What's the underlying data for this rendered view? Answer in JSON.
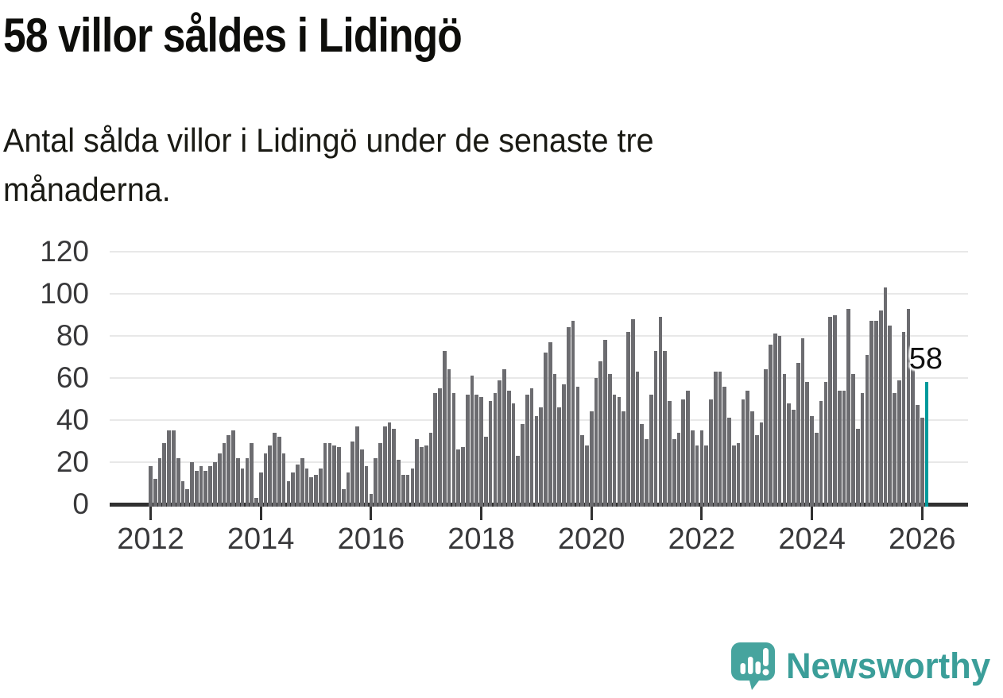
{
  "title": "58 villor såldes i Lidingö",
  "subtitle_lines": [
    "Antal sålda villor i Lidingö under de senaste tre",
    "månaderna."
  ],
  "annotation": {
    "label": "58"
  },
  "logo": {
    "text": "Newsworthy",
    "icon": "newsworthy-speech-bubble-bar-chart-icon"
  },
  "colors": {
    "bar": "#6c6c70",
    "highlight": "#00999b",
    "grid": "#e8e8e8",
    "axis": "#303030",
    "axis_text": "#38383a",
    "title_text": "#0e0e0b",
    "logo_teal": "#46a49e",
    "logo_text_teal": "#3b9e99"
  },
  "chart_data": {
    "type": "bar",
    "title": "58 villor såldes i Lidingö",
    "xlabel": "",
    "ylabel": "",
    "x_interval": "monthly",
    "x_range": [
      "2012-01",
      "2026-02"
    ],
    "x_tick_labels": [
      "2012",
      "2014",
      "2016",
      "2018",
      "2020",
      "2022",
      "2024",
      "2026"
    ],
    "y_ticks": [
      0,
      20,
      40,
      60,
      80,
      100,
      120
    ],
    "ylim": [
      0,
      120
    ],
    "grid": true,
    "legend": "none",
    "highlight_last_bar": true,
    "last_bar_label": "58",
    "values": [
      18,
      12,
      22,
      29,
      35,
      35,
      22,
      11,
      7,
      20,
      16,
      18,
      16,
      18,
      20,
      24,
      29,
      33,
      35,
      22,
      17,
      22,
      29,
      3,
      15,
      24,
      28,
      34,
      32,
      24,
      11,
      15,
      19,
      22,
      17,
      13,
      14,
      17,
      29,
      29,
      28,
      27,
      7,
      15,
      30,
      37,
      26,
      18,
      5,
      22,
      29,
      37,
      39,
      36,
      21,
      14,
      14,
      17,
      31,
      27,
      28,
      34,
      53,
      55,
      73,
      64,
      53,
      26,
      27,
      52,
      61,
      52,
      51,
      32,
      49,
      53,
      59,
      64,
      54,
      48,
      23,
      38,
      52,
      55,
      42,
      46,
      72,
      77,
      62,
      46,
      57,
      84,
      87,
      56,
      33,
      28,
      44,
      60,
      68,
      78,
      62,
      52,
      51,
      44,
      82,
      88,
      63,
      38,
      31,
      52,
      73,
      89,
      73,
      49,
      31,
      34,
      50,
      54,
      35,
      28,
      35,
      28,
      50,
      63,
      63,
      56,
      41,
      28,
      29,
      50,
      54,
      44,
      33,
      39,
      64,
      76,
      81,
      80,
      62,
      48,
      45,
      67,
      79,
      58,
      42,
      34,
      49,
      58,
      89,
      90,
      54,
      54,
      93,
      62,
      36,
      53,
      71,
      87,
      87,
      92,
      103,
      85,
      53,
      59,
      82,
      93,
      65,
      47,
      41,
      58
    ]
  }
}
